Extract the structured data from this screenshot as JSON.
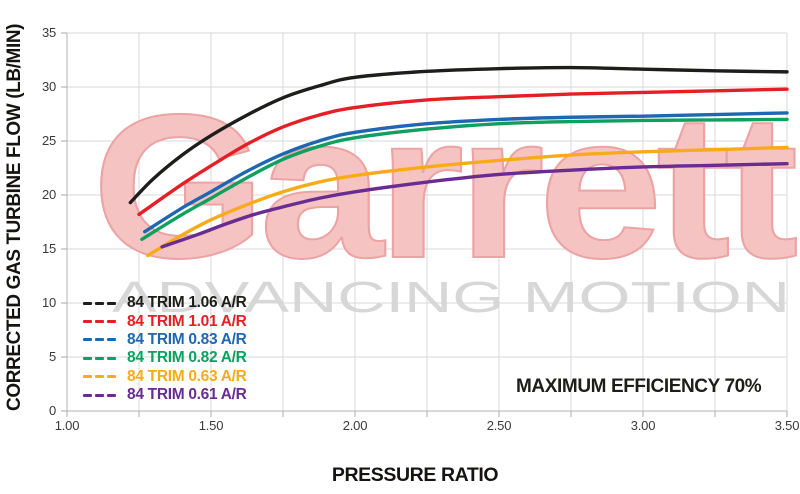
{
  "watermark": {
    "brand": "Garrett",
    "tagline": "ADVANCING MOTION",
    "brand_fill": "#f6c3c3",
    "brand_stroke": "#eca3a3",
    "tagline_color": "#d7d7d7"
  },
  "annotation": {
    "text": "MAXIMUM EFFICIENCY 70%"
  },
  "chart_data": {
    "type": "line",
    "title": "",
    "xlabel": "PRESSURE RATIO",
    "ylabel": "CORRECTED GAS TURBINE FLOW (LB/MIN)",
    "xlim": [
      1.0,
      3.5
    ],
    "ylim": [
      0,
      35
    ],
    "x_grid_step": 0.25,
    "x_label_step": 0.5,
    "y_tick_step": 5,
    "x_tick_labels": [
      "1.00",
      "1.50",
      "2.00",
      "2.50",
      "3.00",
      "3.50"
    ],
    "y_tick_labels": [
      "0",
      "5",
      "10",
      "15",
      "20",
      "25",
      "30",
      "35"
    ],
    "grid": true,
    "legend_position": "lower-left",
    "grid_color": "#d9d9d9",
    "axis_color": "#b3b3b3",
    "tick_color": "#a8a8a8",
    "series": [
      {
        "name": "84 TRIM 1.06 A/R",
        "color": "#1d1d1b",
        "points": [
          [
            1.22,
            19.3
          ],
          [
            1.3,
            21.5
          ],
          [
            1.4,
            23.7
          ],
          [
            1.5,
            25.5
          ],
          [
            1.625,
            27.4
          ],
          [
            1.75,
            29.0
          ],
          [
            1.875,
            30.1
          ],
          [
            2.0,
            30.9
          ],
          [
            2.25,
            31.45
          ],
          [
            2.5,
            31.7
          ],
          [
            2.75,
            31.8
          ],
          [
            3.0,
            31.65
          ],
          [
            3.25,
            31.5
          ],
          [
            3.5,
            31.4
          ]
        ]
      },
      {
        "name": "84 TRIM 1.01 A/R",
        "color": "#e51f26",
        "points": [
          [
            1.25,
            18.2
          ],
          [
            1.4,
            21.0
          ],
          [
            1.5,
            22.7
          ],
          [
            1.625,
            24.7
          ],
          [
            1.75,
            26.3
          ],
          [
            1.875,
            27.4
          ],
          [
            2.0,
            28.1
          ],
          [
            2.25,
            28.8
          ],
          [
            2.5,
            29.1
          ],
          [
            2.75,
            29.35
          ],
          [
            3.0,
            29.5
          ],
          [
            3.25,
            29.65
          ],
          [
            3.5,
            29.8
          ]
        ]
      },
      {
        "name": "84 TRIM 0.83 A/R",
        "color": "#1f67b1",
        "points": [
          [
            1.27,
            16.6
          ],
          [
            1.4,
            18.8
          ],
          [
            1.5,
            20.3
          ],
          [
            1.625,
            22.2
          ],
          [
            1.75,
            23.8
          ],
          [
            1.875,
            25.0
          ],
          [
            2.0,
            25.8
          ],
          [
            2.25,
            26.6
          ],
          [
            2.5,
            27.0
          ],
          [
            2.75,
            27.2
          ],
          [
            3.0,
            27.3
          ],
          [
            3.25,
            27.45
          ],
          [
            3.5,
            27.6
          ]
        ]
      },
      {
        "name": "84 TRIM 0.82 A/R",
        "color": "#0ea05e",
        "points": [
          [
            1.26,
            15.9
          ],
          [
            1.4,
            18.2
          ],
          [
            1.5,
            19.7
          ],
          [
            1.625,
            21.6
          ],
          [
            1.75,
            23.3
          ],
          [
            1.875,
            24.5
          ],
          [
            2.0,
            25.3
          ],
          [
            2.25,
            26.1
          ],
          [
            2.5,
            26.6
          ],
          [
            2.75,
            26.8
          ],
          [
            3.0,
            26.9
          ],
          [
            3.25,
            26.95
          ],
          [
            3.5,
            27.0
          ]
        ]
      },
      {
        "name": "84 TRIM 0.63 A/R",
        "color": "#f8ab19",
        "points": [
          [
            1.28,
            14.4
          ],
          [
            1.4,
            16.3
          ],
          [
            1.5,
            17.7
          ],
          [
            1.625,
            19.1
          ],
          [
            1.75,
            20.3
          ],
          [
            1.875,
            21.2
          ],
          [
            2.0,
            21.8
          ],
          [
            2.25,
            22.6
          ],
          [
            2.5,
            23.2
          ],
          [
            2.75,
            23.7
          ],
          [
            3.0,
            24.0
          ],
          [
            3.25,
            24.2
          ],
          [
            3.5,
            24.4
          ]
        ]
      },
      {
        "name": "84 TRIM 0.61 A/R",
        "color": "#692c91",
        "points": [
          [
            1.33,
            15.2
          ],
          [
            1.45,
            16.3
          ],
          [
            1.55,
            17.3
          ],
          [
            1.65,
            18.2
          ],
          [
            1.75,
            18.9
          ],
          [
            1.875,
            19.7
          ],
          [
            2.0,
            20.3
          ],
          [
            2.25,
            21.2
          ],
          [
            2.5,
            21.9
          ],
          [
            2.75,
            22.3
          ],
          [
            3.0,
            22.6
          ],
          [
            3.25,
            22.75
          ],
          [
            3.5,
            22.9
          ]
        ]
      }
    ]
  }
}
